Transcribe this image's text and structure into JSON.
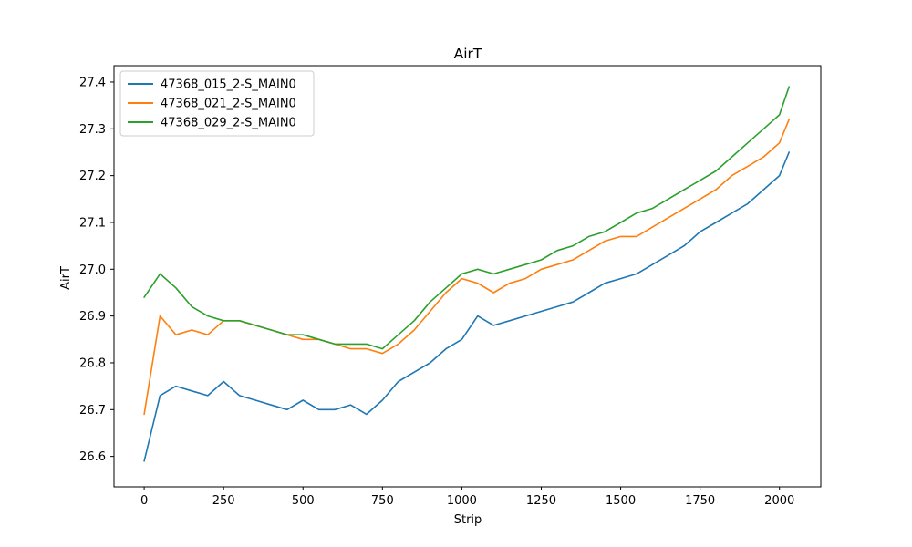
{
  "chart_data": {
    "type": "line",
    "title": "AirT",
    "xlabel": "Strip",
    "ylabel": "AirT",
    "xlim": [
      -95,
      2130
    ],
    "ylim": [
      26.535,
      27.435
    ],
    "xticks": [
      0,
      250,
      500,
      750,
      1000,
      1250,
      1500,
      1750,
      2000
    ],
    "yticks": [
      26.6,
      26.7,
      26.8,
      26.9,
      27.0,
      27.1,
      27.2,
      27.3,
      27.4
    ],
    "xtick_labels": [
      "0",
      "250",
      "500",
      "750",
      "1000",
      "1250",
      "1500",
      "1750",
      "2000"
    ],
    "ytick_labels": [
      "26.6",
      "26.7",
      "26.8",
      "26.9",
      "27.0",
      "27.1",
      "27.2",
      "27.3",
      "27.4"
    ],
    "grid": false,
    "legend_position": "top-left",
    "x_sampling_note": "values sampled every 50 strips from 0 to 2000, final point at 2030",
    "x": [
      0,
      50,
      100,
      150,
      200,
      250,
      300,
      350,
      400,
      450,
      500,
      550,
      600,
      650,
      700,
      750,
      800,
      850,
      900,
      950,
      1000,
      1050,
      1100,
      1150,
      1200,
      1250,
      1300,
      1350,
      1400,
      1450,
      1500,
      1550,
      1600,
      1650,
      1700,
      1750,
      1800,
      1850,
      1900,
      1950,
      2000,
      2030
    ],
    "series": [
      {
        "name": "47368_015_2-S_MAIN0",
        "color": "#1f77b4",
        "values": [
          26.59,
          26.73,
          26.75,
          26.74,
          26.73,
          26.76,
          26.73,
          26.72,
          26.71,
          26.7,
          26.72,
          26.7,
          26.7,
          26.71,
          26.69,
          26.72,
          26.76,
          26.78,
          26.8,
          26.83,
          26.85,
          26.9,
          26.88,
          26.89,
          26.9,
          26.91,
          26.92,
          26.93,
          26.95,
          26.97,
          26.98,
          26.99,
          27.01,
          27.03,
          27.05,
          27.08,
          27.1,
          27.12,
          27.14,
          27.17,
          27.2,
          27.25
        ]
      },
      {
        "name": "47368_021_2-S_MAIN0",
        "color": "#ff7f0e",
        "values": [
          26.69,
          26.9,
          26.86,
          26.87,
          26.86,
          26.89,
          26.89,
          26.88,
          26.87,
          26.86,
          26.85,
          26.85,
          26.84,
          26.83,
          26.83,
          26.82,
          26.84,
          26.87,
          26.91,
          26.95,
          26.98,
          26.97,
          26.95,
          26.97,
          26.98,
          27.0,
          27.01,
          27.02,
          27.04,
          27.06,
          27.07,
          27.07,
          27.09,
          27.11,
          27.13,
          27.15,
          27.17,
          27.2,
          27.22,
          27.24,
          27.27,
          27.32
        ]
      },
      {
        "name": "47368_029_2-S_MAIN0",
        "color": "#2ca02c",
        "values": [
          26.94,
          26.99,
          26.96,
          26.92,
          26.9,
          26.89,
          26.89,
          26.88,
          26.87,
          26.86,
          26.86,
          26.85,
          26.84,
          26.84,
          26.84,
          26.83,
          26.86,
          26.89,
          26.93,
          26.96,
          26.99,
          27.0,
          26.99,
          27.0,
          27.01,
          27.02,
          27.04,
          27.05,
          27.07,
          27.08,
          27.1,
          27.12,
          27.13,
          27.15,
          27.17,
          27.19,
          27.21,
          27.24,
          27.27,
          27.3,
          27.33,
          27.39
        ]
      }
    ]
  }
}
